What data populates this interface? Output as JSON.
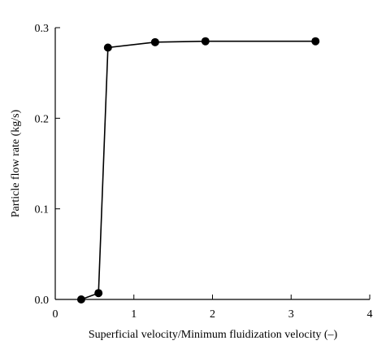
{
  "chart_data": {
    "type": "line",
    "title": "",
    "xlabel": "Superficial velocity/Minimum fluidization velocity  (–)",
    "ylabel": "Particle flow rate  (kg/s)",
    "xlim": [
      0,
      4
    ],
    "ylim": [
      0.0,
      0.3
    ],
    "x_ticks": [
      0,
      1,
      2,
      3,
      4
    ],
    "x_tick_labels": [
      "0",
      "1",
      "2",
      "3",
      "4"
    ],
    "y_ticks": [
      0.0,
      0.1,
      0.2,
      0.3
    ],
    "y_tick_labels": [
      "0.0",
      "0.1",
      "0.2",
      "0.3"
    ],
    "grid": false,
    "legend": "none",
    "series": [
      {
        "x": [
          0.33,
          0.55,
          0.67,
          1.27,
          1.91,
          3.31
        ],
        "y": [
          0.0,
          0.007,
          0.278,
          0.284,
          0.285,
          0.285
        ],
        "marker": "filled-circle",
        "color": "#000000"
      }
    ]
  }
}
